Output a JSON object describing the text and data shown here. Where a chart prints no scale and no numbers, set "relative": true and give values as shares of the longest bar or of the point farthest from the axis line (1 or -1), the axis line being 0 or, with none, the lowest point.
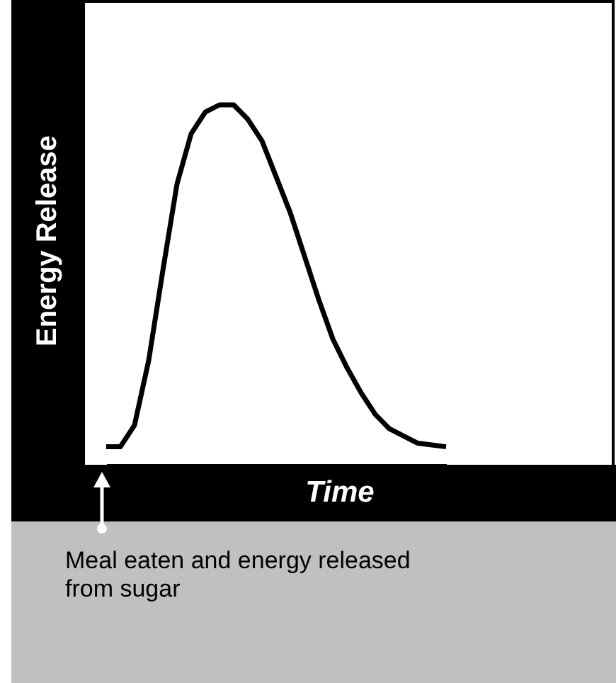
{
  "chart_data": {
    "type": "line",
    "xlabel": "Time",
    "ylabel": "Energy Release",
    "relative": true,
    "tick_labels": false,
    "color": "#000000",
    "categories": [
      null,
      null,
      null,
      null,
      null,
      null,
      null,
      null,
      null,
      null,
      null,
      null,
      null,
      null,
      null,
      null,
      null,
      null,
      null,
      null,
      null,
      null,
      null,
      null,
      null
    ],
    "values": [
      0.05,
      0.05,
      0.11,
      0.29,
      0.54,
      0.78,
      0.92,
      0.98,
      1,
      1,
      0.96,
      0.9,
      0.8,
      0.7,
      0.58,
      0.46,
      0.35,
      0.27,
      0.2,
      0.14,
      0.1,
      0.08,
      0.06,
      0.055,
      0.05
    ],
    "annotations": [
      "Meal eaten and energy released from sugar"
    ]
  }
}
